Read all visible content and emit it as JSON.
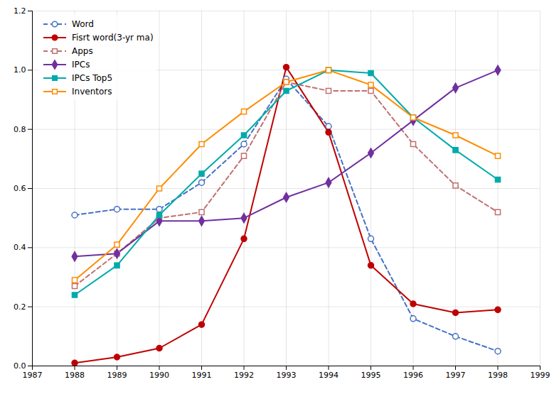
{
  "chart_data": {
    "type": "line",
    "x": [
      1988,
      1989,
      1990,
      1991,
      1992,
      1993,
      1994,
      1995,
      1996,
      1997,
      1998
    ],
    "series": [
      {
        "name": "Word",
        "color": "#4472C4",
        "marker": "circle-open",
        "line_style": "dashed",
        "values": [
          0.51,
          0.53,
          0.53,
          0.62,
          0.75,
          0.97,
          0.81,
          0.43,
          0.16,
          0.1,
          0.05
        ]
      },
      {
        "name": "Fisrt word(3-yr ma)",
        "color": "#C00000",
        "marker": "circle",
        "line_style": "solid",
        "values": [
          0.01,
          0.03,
          0.06,
          0.14,
          0.43,
          1.01,
          0.79,
          0.34,
          0.21,
          0.18,
          0.19
        ]
      },
      {
        "name": "Apps",
        "color": "#C07070",
        "marker": "square-open",
        "line_style": "dashed",
        "values": [
          0.27,
          0.38,
          0.5,
          0.52,
          0.71,
          0.96,
          0.93,
          0.93,
          0.75,
          0.61,
          0.52
        ]
      },
      {
        "name": "IPCs",
        "color": "#7030A0",
        "marker": "diamond",
        "line_style": "solid",
        "values": [
          0.37,
          0.38,
          0.49,
          0.49,
          0.5,
          0.57,
          0.62,
          0.72,
          0.83,
          0.94,
          1.0
        ]
      },
      {
        "name": "IPCs Top5",
        "color": "#00AAAA",
        "marker": "square",
        "line_style": "solid",
        "values": [
          0.24,
          0.34,
          0.51,
          0.65,
          0.78,
          0.93,
          1.0,
          0.99,
          0.84,
          0.73,
          0.63
        ]
      },
      {
        "name": "Inventors",
        "color": "#FF8C00",
        "marker": "square-open",
        "line_style": "solid",
        "values": [
          0.29,
          0.41,
          0.6,
          0.75,
          0.86,
          0.96,
          1.0,
          0.95,
          0.84,
          0.78,
          0.71
        ]
      }
    ],
    "xlim": [
      1987,
      1999
    ],
    "ylim": [
      0.0,
      1.2
    ],
    "xticks": [
      1987,
      1988,
      1989,
      1990,
      1991,
      1992,
      1993,
      1994,
      1995,
      1996,
      1997,
      1998,
      1999
    ],
    "yticks": [
      {
        "value": 0.0,
        "label": "0.0"
      },
      0.2,
      0.4,
      0.6,
      0.8,
      {
        "value": 1.0,
        "label": "1.0"
      },
      1.2
    ],
    "grid": true,
    "legend": "upper left"
  }
}
